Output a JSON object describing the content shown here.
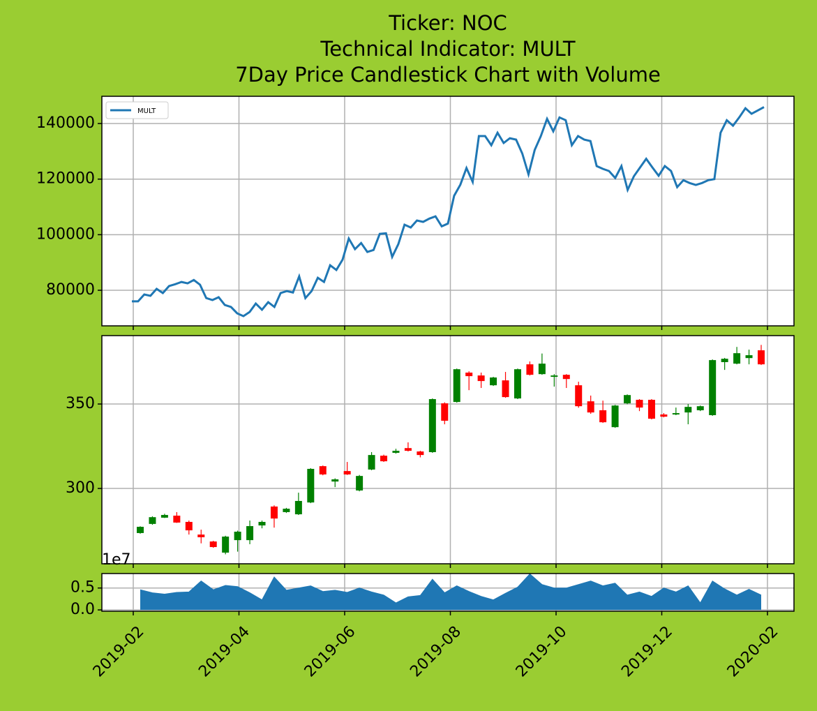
{
  "chart_data": [
    {
      "type": "line",
      "title": [
        "Ticker: NOC",
        "Technical Indicator: MULT",
        "7Day Price Candlestick Chart with Volume"
      ],
      "series": [
        {
          "name": "MULT",
          "color": "#1f77b4",
          "values": [
            76000,
            76000,
            78500,
            78000,
            80500,
            79000,
            81500,
            82200,
            83000,
            82500,
            83700,
            82000,
            77200,
            76500,
            77500,
            74700,
            74000,
            71700,
            70700,
            72200,
            75200,
            73000,
            75700,
            74000,
            79000,
            79700,
            79200,
            85000,
            77200,
            79700,
            84500,
            83000,
            89000,
            87300,
            91000,
            98600,
            94800,
            97000,
            93800,
            94500,
            100300,
            100500,
            92000,
            96600,
            103600,
            102600,
            105100,
            104600,
            105800,
            106600,
            103000,
            104000,
            114000,
            118000,
            124000,
            119000,
            135500,
            135500,
            132200,
            136700,
            133000,
            134700,
            134200,
            129200,
            121700,
            130500,
            135500,
            141700,
            137200,
            142200,
            141200,
            132200,
            135500,
            134200,
            133700,
            124700,
            123700,
            122900,
            120400,
            124700,
            116100,
            121000,
            124200,
            127300,
            124200,
            121200,
            124700,
            122900,
            117100,
            119600,
            118600,
            117900,
            118600,
            119600,
            120000,
            136700,
            141200,
            139200,
            142200,
            145500,
            143500,
            144700,
            145900
          ]
        }
      ],
      "ylim": [
        67200,
        149800
      ],
      "yticks": [
        80000,
        100000,
        120000,
        140000
      ],
      "grid": true,
      "legend": "upper left"
    },
    {
      "type": "candlestick",
      "up_color": "#008000",
      "down_color": "#ff0000",
      "open": [
        273.6,
        279.0,
        282.7,
        283.9,
        280.2,
        272.7,
        268.6,
        262.0,
        269.4,
        269.4,
        278.1,
        289.3,
        286.0,
        284.7,
        291.7,
        313.2,
        304.1,
        310.3,
        298.8,
        311.2,
        319.4,
        321.1,
        323.9,
        321.9,
        321.5,
        350.4,
        351.2,
        368.6,
        366.9,
        361.1,
        364.0,
        353.3,
        373.5,
        367.7,
        366.1,
        367.3,
        361.1,
        351.6,
        346.3,
        336.3,
        350.4,
        352.5,
        352.5,
        343.8,
        343.8,
        345.0,
        346.3,
        343.4,
        374.8,
        373.9,
        377.2,
        381.8
      ],
      "high": [
        277.6,
        283.5,
        285.0,
        286.0,
        281.0,
        275.6,
        269.0,
        272.0,
        275.0,
        281.0,
        281.0,
        290.0,
        288.5,
        297.5,
        312.0,
        313.6,
        306.0,
        315.7,
        308.0,
        321.5,
        320.0,
        323.5,
        327.3,
        322.3,
        353.3,
        351.0,
        371.0,
        369.4,
        368.6,
        366.1,
        369.0,
        371.0,
        375.2,
        379.9,
        367.7,
        367.7,
        363.2,
        355.0,
        352.0,
        349.5,
        355.7,
        352.9,
        352.9,
        344.6,
        347.9,
        350.0,
        349.1,
        376.4,
        377.3,
        383.8,
        382.2,
        385.0
      ],
      "low": [
        273.2,
        278.5,
        282.5,
        279.6,
        272.7,
        267.5,
        264.9,
        261.0,
        262.6,
        267.0,
        276.4,
        276.8,
        285.5,
        284.3,
        291.3,
        307.8,
        300.8,
        308.0,
        298.3,
        310.8,
        315.7,
        320.6,
        321.9,
        318.4,
        321.1,
        338.0,
        350.8,
        358.2,
        359.5,
        360.7,
        353.7,
        352.9,
        366.9,
        367.3,
        360.3,
        359.5,
        347.8,
        344.2,
        338.8,
        335.9,
        349.9,
        345.8,
        340.9,
        342.1,
        343.4,
        338.0,
        345.8,
        343.0,
        370.2,
        373.5,
        373.5,
        373.1
      ],
      "close": [
        277.3,
        283.0,
        284.3,
        279.8,
        275.2,
        271.1,
        265.3,
        271.5,
        274.4,
        277.7,
        280.2,
        282.2,
        288.0,
        292.6,
        311.6,
        308.3,
        305.4,
        308.3,
        307.4,
        319.8,
        316.1,
        322.3,
        322.3,
        319.8,
        352.9,
        340.1,
        370.6,
        366.5,
        363.6,
        365.7,
        354.1,
        370.6,
        367.3,
        373.9,
        366.9,
        364.8,
        348.7,
        345.0,
        339.2,
        349.1,
        355.3,
        347.9,
        341.3,
        342.5,
        344.6,
        348.3,
        348.7,
        376.0,
        376.8,
        380.1,
        378.9,
        373.5
      ],
      "ylim": [
        255.4,
        390.5
      ],
      "yticks": [
        300,
        350
      ],
      "grid": true
    },
    {
      "type": "area",
      "color": "#1f77b4",
      "offset_label": "1e7",
      "values": [
        0.46,
        0.39,
        0.36,
        0.4,
        0.41,
        0.66,
        0.46,
        0.56,
        0.53,
        0.39,
        0.23,
        0.75,
        0.45,
        0.5,
        0.55,
        0.42,
        0.45,
        0.4,
        0.5,
        0.41,
        0.34,
        0.16,
        0.3,
        0.33,
        0.7,
        0.39,
        0.55,
        0.42,
        0.31,
        0.23,
        0.38,
        0.52,
        0.82,
        0.58,
        0.5,
        0.5,
        0.58,
        0.66,
        0.55,
        0.61,
        0.34,
        0.41,
        0.31,
        0.5,
        0.41,
        0.55,
        0.16,
        0.66,
        0.48,
        0.34,
        0.47,
        0.34
      ],
      "ylim": [
        -0.03,
        0.83
      ],
      "yticks": [
        {
          "value": 0,
          "label": "0.0"
        },
        0.5
      ],
      "xticks": [
        "2019-02",
        "2019-04",
        "2019-06",
        "2019-08",
        "2019-10",
        "2019-12",
        "2020-02"
      ],
      "grid": true
    }
  ]
}
